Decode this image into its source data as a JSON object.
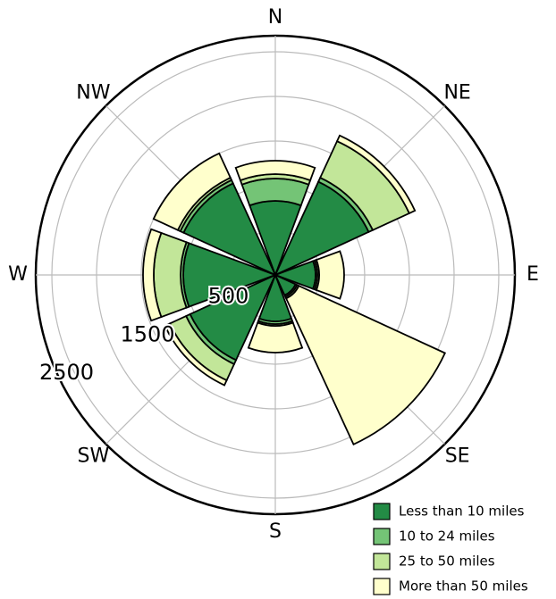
{
  "chart_data": {
    "type": "polar_stacked_bar",
    "categories": [
      "N",
      "NE",
      "E",
      "SE",
      "S",
      "SW",
      "W",
      "NW"
    ],
    "series": [
      {
        "name": "Less than 10 miles",
        "color": "#238b45",
        "values": [
          830,
          1150,
          450,
          250,
          520,
          1050,
          1030,
          1130
        ]
      },
      {
        "name": "10 to 24 miles",
        "color": "#74c476",
        "values": [
          250,
          50,
          20,
          20,
          30,
          50,
          30,
          40
        ]
      },
      {
        "name": "25 to 50 miles",
        "color": "#c2e699",
        "values": [
          50,
          450,
          20,
          20,
          20,
          200,
          300,
          30
        ]
      },
      {
        "name": "More than 50 miles",
        "color": "#ffffcc",
        "values": [
          150,
          70,
          280,
          1800,
          300,
          60,
          120,
          300
        ]
      }
    ],
    "ylim": [
      0,
      2680
    ],
    "yticks": [
      500,
      1500,
      2500
    ],
    "minor_yticks": [
      1000,
      2000
    ],
    "grid": true,
    "legend": "lower right"
  }
}
